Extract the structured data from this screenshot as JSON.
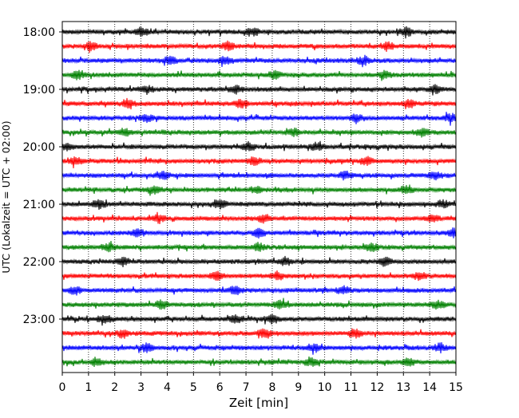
{
  "chart_data": {
    "type": "line",
    "title": "",
    "xlabel": "Zeit  [min]",
    "ylabel": "UTC (Lokalzeit = UTC + 02:00)",
    "xlim": [
      0,
      15
    ],
    "x_ticks": [
      0,
      1,
      2,
      3,
      4,
      5,
      6,
      7,
      8,
      9,
      10,
      11,
      12,
      13,
      14,
      15
    ],
    "y_tick_labels": [
      "18:00",
      "19:00",
      "20:00",
      "21:00",
      "22:00",
      "23:00"
    ],
    "grid": "vertical-dotted",
    "trace_interval_min": 15,
    "color_cycle": [
      "#000000",
      "#ff0000",
      "#0000ff",
      "#008000"
    ],
    "series": [
      {
        "start": "18:00",
        "color": "#000000",
        "events_min": [
          3.0,
          7.3,
          13.1
        ]
      },
      {
        "start": "18:15",
        "color": "#ff0000",
        "events_min": [
          1.1,
          6.3,
          12.4
        ]
      },
      {
        "start": "18:30",
        "color": "#0000ff",
        "events_min": [
          4.1,
          6.2,
          11.5
        ]
      },
      {
        "start": "18:45",
        "color": "#008000",
        "events_min": [
          0.6,
          8.1,
          12.3
        ]
      },
      {
        "start": "19:00",
        "color": "#000000",
        "events_min": [
          3.2,
          6.6,
          14.2
        ]
      },
      {
        "start": "19:15",
        "color": "#ff0000",
        "events_min": [
          2.5,
          6.8,
          13.2
        ]
      },
      {
        "start": "19:30",
        "color": "#0000ff",
        "events_min": [
          3.2,
          11.2,
          14.8
        ]
      },
      {
        "start": "19:45",
        "color": "#008000",
        "events_min": [
          2.4,
          8.8,
          13.7
        ]
      },
      {
        "start": "20:00",
        "color": "#000000",
        "events_min": [
          0.2,
          7.1,
          9.7
        ]
      },
      {
        "start": "20:15",
        "color": "#ff0000",
        "events_min": [
          0.5,
          7.3,
          11.6
        ]
      },
      {
        "start": "20:30",
        "color": "#0000ff",
        "events_min": [
          3.8,
          10.8,
          14.2
        ]
      },
      {
        "start": "20:45",
        "color": "#008000",
        "events_min": [
          3.5,
          7.4,
          13.1
        ]
      },
      {
        "start": "21:00",
        "color": "#000000",
        "events_min": [
          1.4,
          6.0,
          14.5
        ]
      },
      {
        "start": "21:15",
        "color": "#ff0000",
        "events_min": [
          3.7,
          7.7,
          14.1
        ]
      },
      {
        "start": "21:30",
        "color": "#0000ff",
        "events_min": [
          2.9,
          7.5,
          14.9
        ]
      },
      {
        "start": "21:45",
        "color": "#008000",
        "events_min": [
          1.8,
          7.5,
          11.8
        ]
      },
      {
        "start": "22:00",
        "color": "#000000",
        "events_min": [
          2.3,
          8.5,
          12.3
        ]
      },
      {
        "start": "22:15",
        "color": "#ff0000",
        "events_min": [
          5.9,
          8.2,
          13.6
        ]
      },
      {
        "start": "22:30",
        "color": "#0000ff",
        "events_min": [
          0.5,
          6.6,
          10.7
        ]
      },
      {
        "start": "22:45",
        "color": "#008000",
        "events_min": [
          3.8,
          8.3,
          14.3
        ]
      },
      {
        "start": "23:00",
        "color": "#000000",
        "events_min": [
          1.6,
          6.6,
          8.0
        ]
      },
      {
        "start": "23:15",
        "color": "#ff0000",
        "events_min": [
          2.3,
          7.7,
          11.2
        ]
      },
      {
        "start": "23:30",
        "color": "#0000ff",
        "events_min": [
          3.2,
          9.6,
          14.4
        ]
      },
      {
        "start": "23:45",
        "color": "#008000",
        "events_min": [
          1.3,
          9.5,
          13.2
        ]
      }
    ]
  }
}
